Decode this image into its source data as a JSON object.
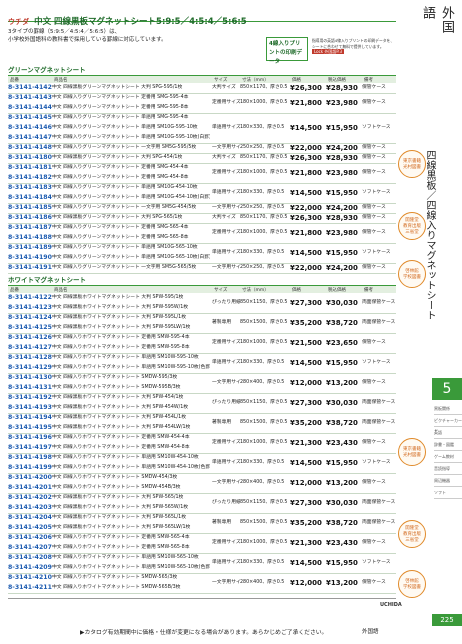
{
  "header": {
    "brand": "ウチダ",
    "title": "中文 四線黒板マグネットシート5:9:5／4:5:4／5:6:5",
    "lead": [
      "3タイプの罫線（5:9:5／4:5:4／5:6:5）は、",
      "小学校外国語科の教科書で採用している罫線に対応しています。"
    ],
    "badge": "4線入りプリントの印刷データ",
    "badge_note": [
      "指導用の英語4線入りプリントの印刷データを、",
      "シートに合わせて無料で提供しています。"
    ],
    "link": "Lock 外国語P.3"
  },
  "columns": [
    "品番",
    "商品名",
    "サイズ",
    "寸法（mm）",
    "価格",
    "税込価格",
    "備考"
  ],
  "sections": [
    {
      "title": "グリーンマグネットシート",
      "groups": [
        {
          "size_name": "大判サイズ",
          "size": "850×1170、厚さ0.5",
          "price": "¥26,300",
          "price_tax": "¥28,930",
          "note": "保管ケース",
          "rows": [
            {
              "code": "8-3141-4142",
              "name": "中文 四線黒板グリーンマグネットシート 大判 SPG-595/1枚"
            }
          ]
        },
        {
          "size_name": "定番用サイズ",
          "size": "180×1000、厚さ0.5",
          "price": "¥21,800",
          "price_tax": "¥23,980",
          "note": "保管ケース",
          "rows": [
            {
              "code": "8-3141-4143",
              "name": "中文 四線入りグリーンマグネットシート 定番用 SMG-595-4本"
            },
            {
              "code": "8-3141-4144",
              "name": "中文 四線入りグリーンマグネットシート 定番用 SMG-595-8本"
            }
          ]
        },
        {
          "size_name": "単語用サイズ",
          "size": "180×330、厚さ0.5",
          "price": "¥14,500",
          "price_tax": "¥15,950",
          "note": "ソフトケース",
          "rows": [
            {
              "code": "8-3141-4145",
              "name": "中文 四線入りグリーンマグネットシート 単語用 SMG-595-4本"
            },
            {
              "code": "8-3141-4146",
              "name": "中文 四線入りグリーンマグネットシート 単語用 SM10G-595-10枚"
            },
            {
              "code": "8-3141-4147",
              "name": "中文 四線入りグリーンマグネットシート 単語用 SM10G-595-10枚(白罫)"
            }
          ]
        },
        {
          "size_name": "一文字用サイズ",
          "size": "250×250、厚さ0.5",
          "price": "¥22,000",
          "price_tax": "¥24,200",
          "note": "保管ケース",
          "rows": [
            {
              "code": "8-3141-4148",
              "name": "中文 四線入りグリーンマグネットシート 一文字用 SM5G-595/5枚"
            }
          ]
        },
        {
          "size_name": "大判サイズ",
          "size": "850×1170、厚さ0.5",
          "price": "¥26,300",
          "price_tax": "¥28,930",
          "note": "保管ケース",
          "rows": [
            {
              "code": "8-3141-4180",
              "name": "中文 四線黒板グリーンマグネットシート 大判 SPG-454/1枚"
            }
          ]
        },
        {
          "size_name": "定番用サイズ",
          "size": "180×1000、厚さ0.5",
          "price": "¥21,800",
          "price_tax": "¥23,980",
          "note": "保管ケース",
          "rows": [
            {
              "code": "8-3141-4181",
              "name": "中文 四線入りグリーンマグネットシート 定番用 SMG-454-4本"
            },
            {
              "code": "8-3141-4182",
              "name": "中文 四線入りグリーンマグネットシート 定番用 SMG-454-8本"
            }
          ]
        },
        {
          "size_name": "単語用サイズ",
          "size": "180×330、厚さ0.5",
          "price": "¥14,500",
          "price_tax": "¥15,950",
          "note": "ソフトケース",
          "rows": [
            {
              "code": "8-3141-4183",
              "name": "中文 四線入りグリーンマグネットシート 単語用 SM10G-454-10枚"
            },
            {
              "code": "8-3141-4184",
              "name": "中文 四線入りグリーンマグネットシート 単語用 SM10G-454-10枚(白罫)"
            }
          ]
        },
        {
          "size_name": "一文字用サイズ",
          "size": "250×250、厚さ0.5",
          "price": "¥22,000",
          "price_tax": "¥24,200",
          "note": "保管ケース",
          "rows": [
            {
              "code": "8-3141-4185",
              "name": "中文 四線入りグリーンマグネットシート 一文字用 SM5G-454/5枚"
            }
          ]
        },
        {
          "size_name": "大判サイズ",
          "size": "850×1170、厚さ0.5",
          "price": "¥26,300",
          "price_tax": "¥28,930",
          "note": "保管ケース",
          "rows": [
            {
              "code": "8-3141-4186",
              "name": "中文 四線黒板グリーンマグネットシート 大判 SPG-565/1枚"
            }
          ]
        },
        {
          "size_name": "定番用サイズ",
          "size": "180×1000、厚さ0.5",
          "price": "¥21,800",
          "price_tax": "¥23,980",
          "note": "保管ケース",
          "rows": [
            {
              "code": "8-3141-4187",
              "name": "中文 四線入りグリーンマグネットシート 定番用 SMG-565-4本"
            },
            {
              "code": "8-3141-4188",
              "name": "中文 四線入りグリーンマグネットシート 定番用 SMG-565-8本"
            }
          ]
        },
        {
          "size_name": "単語用サイズ",
          "size": "180×330、厚さ0.5",
          "price": "¥14,500",
          "price_tax": "¥15,950",
          "note": "ソフトケース",
          "rows": [
            {
              "code": "8-3141-4189",
              "name": "中文 四線入りグリーンマグネットシート 単語用 SM10G-565-10枚"
            },
            {
              "code": "8-3141-4190",
              "name": "中文 四線入りグリーンマグネットシート 単語用 SM10G-565-10枚(白罫)"
            }
          ]
        },
        {
          "size_name": "一文字用サイズ",
          "size": "250×250、厚さ0.5",
          "price": "¥22,000",
          "price_tax": "¥24,200",
          "note": "保管ケース",
          "rows": [
            {
              "code": "8-3141-4191",
              "name": "中文 四線入りグリーンマグネットシート 一文字用 SM5G-565/5枚"
            }
          ]
        }
      ]
    },
    {
      "title": "ホワイトマグネットシート",
      "groups": [
        {
          "size_name": "ぴったり用紙",
          "size": "850×1150、厚さ0.5",
          "price": "¥27,300",
          "price_tax": "¥30,030",
          "note": "両面保管ケース",
          "rows": [
            {
              "code": "8-3141-4122",
              "name": "中文 四線黒板ホワイトマグネットシート 大判 SPW-595/1枚"
            },
            {
              "code": "8-3141-4123",
              "name": "中文 四線黒板ホワイトマグネットシート 大判 SPW-595W/1枚"
            }
          ]
        },
        {
          "size_name": "著製専用",
          "size": "850×1500、厚さ0.5",
          "price": "¥35,200",
          "price_tax": "¥38,720",
          "note": "両面保管ケース",
          "rows": [
            {
              "code": "8-3141-4124",
              "name": "中文 四線黒板ホワイトマグネットシート 大判 SPW-595L/1枚"
            },
            {
              "code": "8-3141-4125",
              "name": "中文 四線黒板ホワイトマグネットシート 大判 SPW-595LW/1枚"
            }
          ]
        },
        {
          "size_name": "定番用サイズ",
          "size": "180×1000、厚さ0.5",
          "price": "¥21,500",
          "price_tax": "¥23,650",
          "note": "保管ケース",
          "rows": [
            {
              "code": "8-3141-4126",
              "name": "中文 四線入りホワイトマグネットシート 定番用 SMW-595-4本"
            },
            {
              "code": "8-3141-4127",
              "name": "中文 四線入りホワイトマグネットシート 定番用 SMW-595-8本"
            }
          ]
        },
        {
          "size_name": "単語用サイズ",
          "size": "180×330、厚さ0.5",
          "price": "¥14,500",
          "price_tax": "¥15,950",
          "note": "ソフトケース",
          "rows": [
            {
              "code": "8-3141-4128",
              "name": "中文 四線入りホワイトマグネットシート 単語用 SM10W-595-10枚"
            },
            {
              "code": "8-3141-4129",
              "name": "中文 四線入りホワイトマグネットシート 単語用 SM10W-595-10枚(色罫)"
            }
          ]
        },
        {
          "size_name": "一文字用サイズ",
          "size": "280×400、厚さ0.5",
          "price": "¥12,000",
          "price_tax": "¥13,200",
          "note": "保管ケース",
          "rows": [
            {
              "code": "8-3141-4130",
              "name": "中文 四線入りホワイトマグネットシート SMDW-595/3枚"
            },
            {
              "code": "8-3141-4131",
              "name": "中文 四線入りホワイトマグネットシート SMDW-595B/3枚"
            }
          ]
        },
        {
          "size_name": "ぴったり用紙",
          "size": "850×1150、厚さ0.5",
          "price": "¥27,300",
          "price_tax": "¥30,030",
          "note": "両面保管ケース",
          "rows": [
            {
              "code": "8-3141-4192",
              "name": "中文 四線黒板ホワイトマグネットシート 大判 SPW-454/1枚"
            },
            {
              "code": "8-3141-4193",
              "name": "中文 四線黒板ホワイトマグネットシート 大判 SPW-454W/1枚"
            }
          ]
        },
        {
          "size_name": "著製専用",
          "size": "850×1500、厚さ0.5",
          "price": "¥35,200",
          "price_tax": "¥38,720",
          "note": "両面保管ケース",
          "rows": [
            {
              "code": "8-3141-4194",
              "name": "中文 四線黒板ホワイトマグネットシート 大判 SPW-454L/1枚"
            },
            {
              "code": "8-3141-4195",
              "name": "中文 四線黒板ホワイトマグネットシート 大判 SPW-454LW/1枚"
            }
          ]
        },
        {
          "size_name": "定番用サイズ",
          "size": "180×1000、厚さ0.5",
          "price": "¥21,300",
          "price_tax": "¥23,430",
          "note": "保管ケース",
          "rows": [
            {
              "code": "8-3141-4196",
              "name": "中文 四線入りホワイトマグネットシート 定番用 SMW-454-4本"
            },
            {
              "code": "8-3141-4197",
              "name": "中文 四線入りホワイトマグネットシート 定番用 SMW-454-8本"
            }
          ]
        },
        {
          "size_name": "単語用サイズ",
          "size": "180×330、厚さ0.5",
          "price": "¥14,500",
          "price_tax": "¥15,950",
          "note": "ソフトケース",
          "rows": [
            {
              "code": "8-3141-4198",
              "name": "中文 四線入りホワイトマグネットシート 単語用 SM10W-454-10枚"
            },
            {
              "code": "8-3141-4199",
              "name": "中文 四線入りホワイトマグネットシート 単語用 SM10W-454-10枚(色罫)"
            }
          ]
        },
        {
          "size_name": "一文字用サイズ",
          "size": "280×400、厚さ0.5",
          "price": "¥12,000",
          "price_tax": "¥13,200",
          "note": "保管ケース",
          "rows": [
            {
              "code": "8-3141-4200",
              "name": "中文 四線入りホワイトマグネットシート SMDW-454/3枚"
            },
            {
              "code": "8-3141-4201",
              "name": "中文 四線入りホワイトマグネットシート SMDW-454B/3枚"
            }
          ]
        },
        {
          "size_name": "ぴったり用紙",
          "size": "850×1150、厚さ0.5",
          "price": "¥27,300",
          "price_tax": "¥30,030",
          "note": "両面保管ケース",
          "rows": [
            {
              "code": "8-3141-4202",
              "name": "中文 四線黒板ホワイトマグネットシート 大判 SPW-565/1枚"
            },
            {
              "code": "8-3141-4203",
              "name": "中文 四線黒板ホワイトマグネットシート 大判 SPW-565W/1枚"
            }
          ]
        },
        {
          "size_name": "著製専用",
          "size": "850×1500、厚さ0.5",
          "price": "¥35,200",
          "price_tax": "¥38,720",
          "note": "両面保管ケース",
          "rows": [
            {
              "code": "8-3141-4204",
              "name": "中文 四線黒板ホワイトマグネットシート 大判 SPW-565L/1枚"
            },
            {
              "code": "8-3141-4205",
              "name": "中文 四線黒板ホワイトマグネットシート 大判 SPW-565LW/1枚"
            }
          ]
        },
        {
          "size_name": "定番用サイズ",
          "size": "180×1000、厚さ0.5",
          "price": "¥21,300",
          "price_tax": "¥23,430",
          "note": "保管ケース",
          "rows": [
            {
              "code": "8-3141-4206",
              "name": "中文 四線入りホワイトマグネットシート 定番用 SMW-565-4本"
            },
            {
              "code": "8-3141-4207",
              "name": "中文 四線入りホワイトマグネットシート 定番用 SMW-565-8本"
            }
          ]
        },
        {
          "size_name": "単語用サイズ",
          "size": "180×330、厚さ0.5",
          "price": "¥14,500",
          "price_tax": "¥15,950",
          "note": "ソフトケース",
          "rows": [
            {
              "code": "8-3141-4208",
              "name": "中文 四線入りホワイトマグネットシート 単語用 SM10W-565-10枚"
            },
            {
              "code": "8-3141-4209",
              "name": "中文 四線入りホワイトマグネットシート 単語用 SM10W-565-10枚(色罫)"
            }
          ]
        },
        {
          "size_name": "一文字用サイズ",
          "size": "280×400、厚さ0.5",
          "price": "¥12,000",
          "price_tax": "¥13,200",
          "note": "保管ケース",
          "rows": [
            {
              "code": "8-3141-4210",
              "name": "中文 四線入りホワイトマグネットシート SMDW-565/3枚"
            },
            {
              "code": "8-3141-4211",
              "name": "中文 四線入りホワイトマグネットシート SMDW-565B/3枚"
            }
          ]
        }
      ]
    }
  ],
  "badges": [
    {
      "lines": [
        "東京書籍",
        "光村図書"
      ]
    },
    {
      "lines": [
        "開隆堂",
        "教育出版",
        "三省堂"
      ]
    },
    {
      "lines": [
        "啓林館",
        "学校図書"
      ]
    },
    {
      "lines": [
        "東京書籍",
        "光村図書"
      ]
    },
    {
      "lines": [
        "開隆堂",
        "教育出版",
        "三省堂"
      ]
    },
    {
      "lines": [
        "啓林館",
        "学校図書"
      ]
    }
  ],
  "side": {
    "index_label": "外国語",
    "section_title": "四線黒板／四線入りマグネットシート",
    "tab": "5",
    "menu": [
      "黒板関係",
      "ピクチャーカード",
      "英語",
      "辞書・図鑑",
      "ゲーム教材",
      "音読指導",
      "周辺機器",
      "ソフト"
    ],
    "publisher": "UCHIDA",
    "page_number": "225",
    "footer_section": "外国語"
  },
  "footer": "▶カタログ有効期間中に価格・仕様が変更になる場合があります。あらかじめご了承ください。"
}
